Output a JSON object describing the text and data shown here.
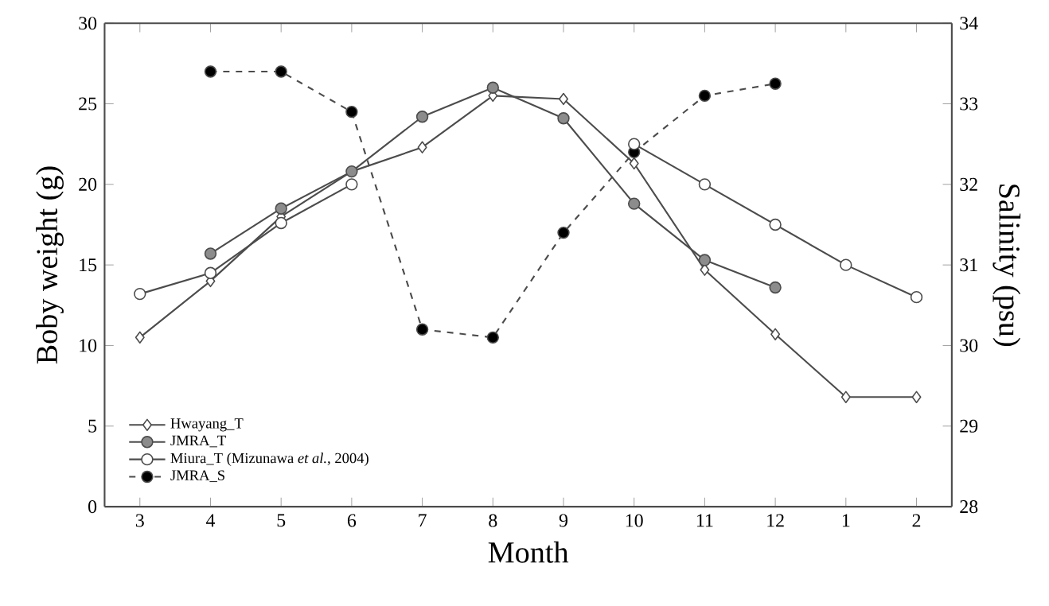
{
  "chart_data": {
    "type": "line",
    "xlabel": "Month",
    "ylabel": "Boby weight (g)",
    "y2label": "Salinity (psu)",
    "categories": [
      "3",
      "4",
      "5",
      "6",
      "7",
      "8",
      "9",
      "10",
      "11",
      "12",
      "1",
      "2"
    ],
    "ylim": [
      0,
      30
    ],
    "yticks": [
      0,
      5,
      10,
      15,
      20,
      25,
      30
    ],
    "y2lim": [
      28,
      34
    ],
    "y2ticks": [
      28,
      29,
      30,
      31,
      32,
      33,
      34
    ],
    "legend": "bottom left",
    "grid": false,
    "series": [
      {
        "name": "Hwayang_T",
        "color": "#ffffff",
        "marker": "diamond",
        "line_style": "solid",
        "values": [
          10.5,
          14,
          18,
          20.8,
          22.3,
          25.5,
          25.3,
          21.3,
          14.7,
          10.7,
          6.8,
          6.8
        ]
      },
      {
        "name": "JMRA_T",
        "color": "#8c8c8c",
        "marker": "circle",
        "line_style": "solid",
        "values": [
          null,
          15.7,
          18.5,
          20.8,
          24.2,
          26,
          24.1,
          18.8,
          15.3,
          13.6,
          null,
          null
        ]
      },
      {
        "name": "Miura_T (Mizunawa *et al.*, 2004)",
        "color": "#ffffff",
        "marker": "circle",
        "line_style": "solid",
        "values": [
          13.2,
          14.5,
          17.6,
          20,
          null,
          null,
          null,
          22.5,
          20,
          17.5,
          15,
          13
        ]
      },
      {
        "name": "JMRA_S",
        "color": "#000000",
        "marker": "circle",
        "line_style": "dashed",
        "axis": "y2",
        "values": [
          null,
          33.4,
          33.4,
          32.9,
          30.2,
          30.1,
          31.4,
          32.4,
          33.1,
          33.25,
          null,
          null
        ]
      }
    ]
  }
}
